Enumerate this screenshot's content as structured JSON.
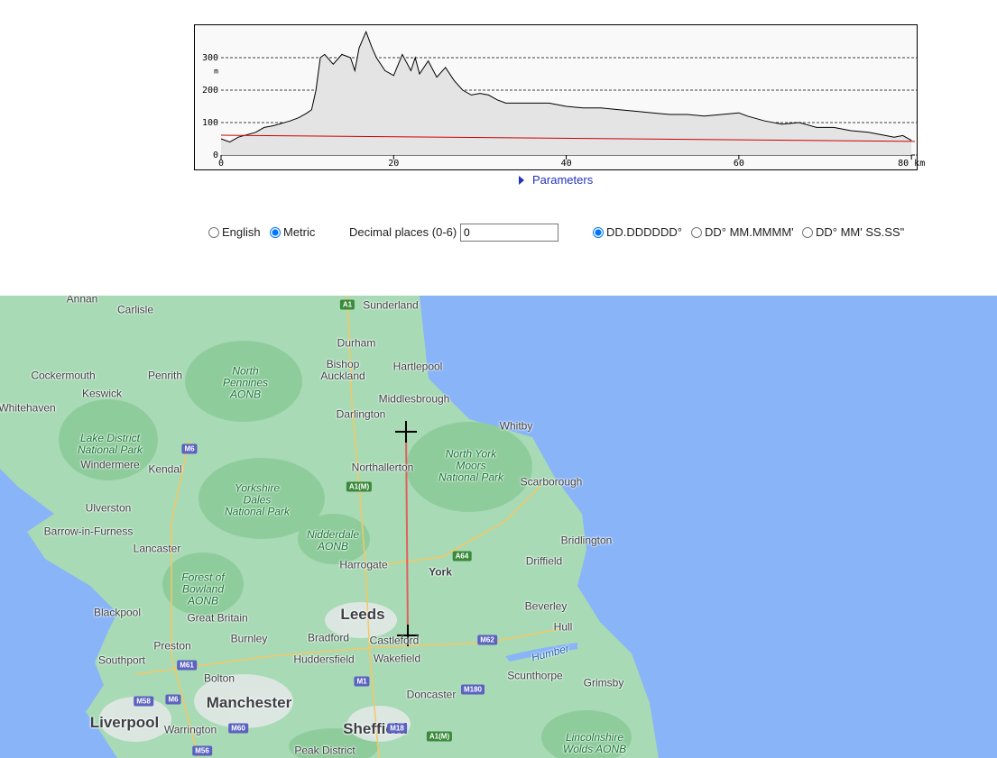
{
  "chart_data": {
    "type": "line",
    "y_unit": "m",
    "x": [
      0,
      1,
      2,
      4,
      5,
      6,
      8,
      9,
      10,
      10.5,
      11,
      11.5,
      12,
      13,
      14,
      15,
      15.5,
      16,
      16.8,
      17.5,
      18,
      19,
      20,
      21,
      22,
      22.5,
      23,
      24,
      25,
      26,
      27,
      28,
      29,
      30,
      31,
      32,
      33,
      34,
      36,
      38,
      40,
      42,
      44,
      46,
      48,
      50,
      52,
      54,
      56,
      58,
      60,
      61,
      63,
      65,
      67,
      69,
      71,
      73,
      75,
      77,
      78,
      79,
      80
    ],
    "series": [
      {
        "color": "#000000",
        "values": [
          50,
          40,
          55,
          70,
          85,
          90,
          105,
          115,
          130,
          140,
          200,
          300,
          310,
          280,
          310,
          300,
          260,
          330,
          380,
          330,
          300,
          260,
          245,
          310,
          260,
          300,
          250,
          290,
          240,
          270,
          230,
          200,
          185,
          190,
          185,
          170,
          160,
          160,
          160,
          160,
          150,
          145,
          145,
          140,
          135,
          130,
          125,
          125,
          120,
          125,
          130,
          120,
          105,
          95,
          100,
          85,
          85,
          75,
          70,
          60,
          55,
          60,
          45
        ]
      },
      {
        "color": "#cc0000",
        "x": [
          0,
          80.4
        ],
        "values": [
          61,
          42
        ]
      }
    ],
    "area_color": "#e4e4e4",
    "xlim": [
      0,
      80.4
    ],
    "xticks": [
      0,
      20,
      40,
      60,
      {
        "value": 80,
        "label": "80 km"
      }
    ],
    "ylim": [
      0,
      400
    ],
    "yticks": [
      0,
      100,
      200,
      300
    ],
    "grid": true
  },
  "controls": {
    "parameters": "Parameters",
    "units": [
      {
        "label": "English",
        "checked": false
      },
      {
        "label": "Metric",
        "checked": true
      }
    ],
    "decimal_label": "Decimal places (0-6)",
    "decimal_value": "0",
    "formats": [
      {
        "label": "DD.DDDDDD°",
        "checked": true
      },
      {
        "label": "DD° MM.MMMM'",
        "checked": false
      },
      {
        "label": "DD° MM' SS.SS\"",
        "checked": false
      }
    ]
  },
  "map": {
    "labels": [
      "Annan",
      "Carlisle",
      "Sunderland",
      "Durham",
      "Bishop\nAuckland",
      "Hartlepool",
      "Cockermouth",
      "Penrith",
      "North\nPennines\nAONB",
      "Keswick",
      "Whitehaven",
      "Middlesbrough",
      "Darlington",
      "Whitby",
      "Lake District\nNational Park",
      "Windermere",
      "Kendal",
      "Northallerton",
      "North York\nMoors\nNational Park",
      "Scarborough",
      "Yorkshire\nDales\nNational Park",
      "Ulverston",
      "Barrow-in-Furness",
      "Lancaster",
      "Nidderdale\nAONB",
      "Harrogate",
      "York",
      "Bridlington",
      "Driffield",
      "Forest of\nBowland\nAONB",
      "Blackpool",
      "Great Britain",
      "Leeds",
      "Beverley",
      "Hull",
      "Preston",
      "Burnley",
      "Bradford",
      "Castleford",
      "Southport",
      "Huddersfield",
      "Wakefield",
      "Bolton",
      "Scunthorpe",
      "Grimsby",
      "Manchester",
      "Doncaster",
      "Liverpool",
      "Warrington",
      "Sheffield",
      "Lincolnshire\nWolds AONB",
      "Peak District",
      "Humber"
    ],
    "shields": [
      "A1",
      "A1(M)",
      "M6",
      "A64",
      "M62",
      "M61",
      "M1",
      "M180",
      "M58",
      "M6",
      "M60",
      "M56",
      "M18",
      "A1(M)"
    ]
  }
}
